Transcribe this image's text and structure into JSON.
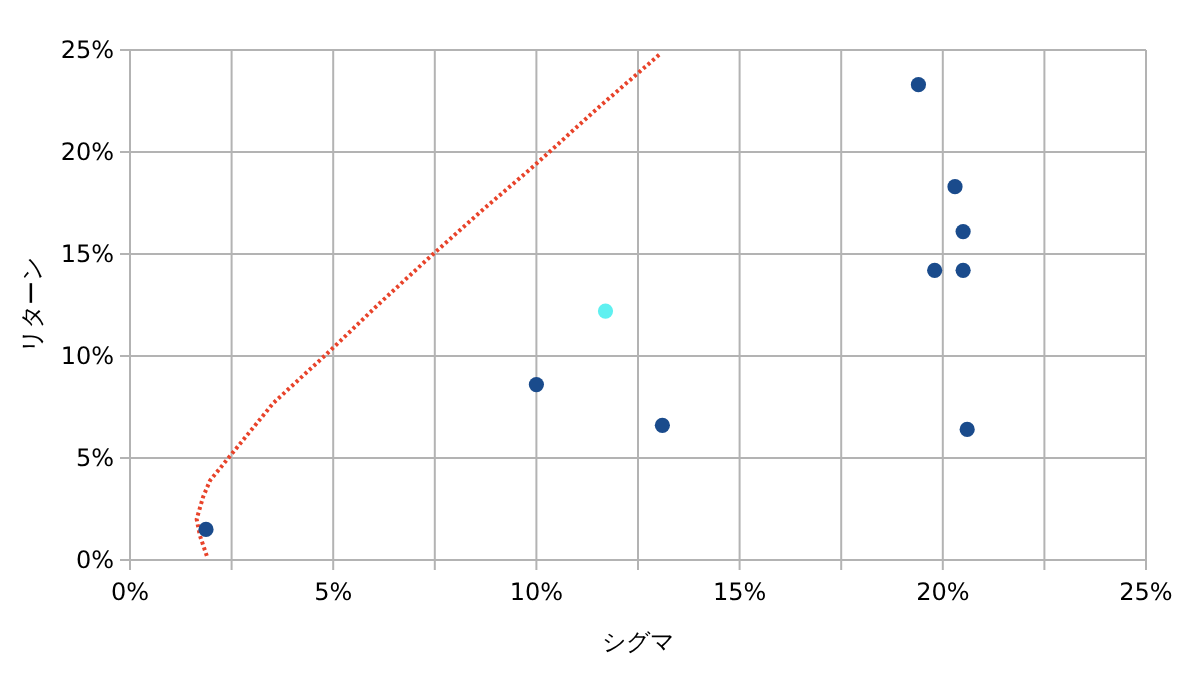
{
  "chart_data": {
    "type": "scatter",
    "xlabel": "シグマ",
    "ylabel": "リターン",
    "grid": true,
    "xlim": [
      0,
      25
    ],
    "ylim": [
      0,
      25
    ],
    "xticks": [
      {
        "value": 0,
        "label": "0%"
      },
      {
        "value": 2.5,
        "label": null
      },
      {
        "value": 5,
        "label": "5%"
      },
      {
        "value": 7.5,
        "label": null
      },
      {
        "value": 10,
        "label": "10%"
      },
      {
        "value": 12.5,
        "label": null
      },
      {
        "value": 15,
        "label": "15%"
      },
      {
        "value": 17.5,
        "label": null
      },
      {
        "value": 20,
        "label": "20%"
      },
      {
        "value": 22.5,
        "label": null
      },
      {
        "value": 25,
        "label": "25%"
      }
    ],
    "yticks": [
      {
        "value": 0,
        "label": "0%"
      },
      {
        "value": 5,
        "label": "5%"
      },
      {
        "value": 10,
        "label": "10%"
      },
      {
        "value": 15,
        "label": "15%"
      },
      {
        "value": 20,
        "label": "20%"
      },
      {
        "value": 25,
        "label": "25%"
      }
    ],
    "series": [
      {
        "type": "line",
        "color": "#e8432a",
        "line_style": "dotted",
        "marker": "none",
        "x": [
          1.89,
          1.72,
          1.64,
          1.8,
          1.97,
          2.38,
          3.53,
          4.84,
          6.15,
          7.46,
          8.7,
          9.93,
          11.48,
          13.04
        ],
        "values": [
          0.2,
          1.2,
          2.0,
          3.1,
          3.9,
          4.9,
          7.7,
          10.1,
          12.6,
          15.0,
          17.2,
          19.3,
          22.1,
          24.8
        ]
      },
      {
        "color": "#1a4b8c",
        "marker": "circle",
        "x": [
          1.87,
          10.0,
          13.1,
          19.4,
          20.3,
          20.5,
          19.8,
          20.5,
          20.6
        ],
        "values": [
          1.5,
          8.6,
          6.6,
          23.3,
          18.3,
          16.1,
          14.2,
          14.2,
          6.4
        ]
      },
      {
        "color": "#5ff0f0",
        "marker": "circle",
        "x": [
          11.7
        ],
        "values": [
          12.2
        ]
      }
    ]
  }
}
